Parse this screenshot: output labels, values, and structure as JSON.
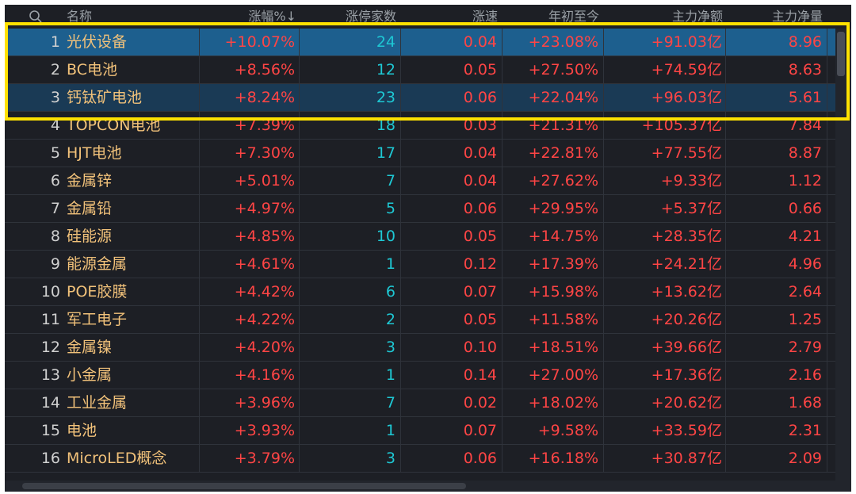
{
  "header": {
    "search_icon": "search-icon",
    "name": "名称",
    "change_pct": "涨幅%↓",
    "limit_up_count": "涨停家数",
    "speed": "涨速",
    "ytd": "年初至今",
    "net_inflow": "主力净额",
    "net_volume": "主力净量"
  },
  "rows": [
    {
      "idx": "1",
      "name": "光伏设备",
      "chg": "+10.07%",
      "cnt": "24",
      "spd": "0.04",
      "ytd": "+23.08%",
      "net": "+91.03亿",
      "vol": "8.96"
    },
    {
      "idx": "2",
      "name": "BC电池",
      "chg": "+8.56%",
      "cnt": "12",
      "spd": "0.05",
      "ytd": "+27.50%",
      "net": "+74.59亿",
      "vol": "8.63"
    },
    {
      "idx": "3",
      "name": "钙钛矿电池",
      "chg": "+8.24%",
      "cnt": "23",
      "spd": "0.06",
      "ytd": "+22.04%",
      "net": "+96.03亿",
      "vol": "5.61"
    },
    {
      "idx": "4",
      "name": "TOPCON电池",
      "chg": "+7.39%",
      "cnt": "18",
      "spd": "0.03",
      "ytd": "+21.31%",
      "net": "+105.37亿",
      "vol": "7.84"
    },
    {
      "idx": "5",
      "name": "HJT电池",
      "chg": "+7.30%",
      "cnt": "17",
      "spd": "0.04",
      "ytd": "+22.81%",
      "net": "+77.55亿",
      "vol": "8.87"
    },
    {
      "idx": "6",
      "name": "金属锌",
      "chg": "+5.01%",
      "cnt": "7",
      "spd": "0.04",
      "ytd": "+27.62%",
      "net": "+9.33亿",
      "vol": "1.12"
    },
    {
      "idx": "7",
      "name": "金属铅",
      "chg": "+4.97%",
      "cnt": "5",
      "spd": "0.06",
      "ytd": "+29.95%",
      "net": "+5.37亿",
      "vol": "0.66"
    },
    {
      "idx": "8",
      "name": "硅能源",
      "chg": "+4.85%",
      "cnt": "10",
      "spd": "0.05",
      "ytd": "+14.75%",
      "net": "+28.35亿",
      "vol": "4.21"
    },
    {
      "idx": "9",
      "name": "能源金属",
      "chg": "+4.61%",
      "cnt": "1",
      "spd": "0.12",
      "ytd": "+17.39%",
      "net": "+24.21亿",
      "vol": "4.96"
    },
    {
      "idx": "10",
      "name": "POE胶膜",
      "chg": "+4.42%",
      "cnt": "6",
      "spd": "0.07",
      "ytd": "+15.98%",
      "net": "+13.62亿",
      "vol": "2.64"
    },
    {
      "idx": "11",
      "name": "军工电子",
      "chg": "+4.22%",
      "cnt": "2",
      "spd": "0.05",
      "ytd": "+11.58%",
      "net": "+20.26亿",
      "vol": "1.25"
    },
    {
      "idx": "12",
      "name": "金属镍",
      "chg": "+4.20%",
      "cnt": "3",
      "spd": "0.10",
      "ytd": "+18.51%",
      "net": "+39.66亿",
      "vol": "2.79"
    },
    {
      "idx": "13",
      "name": "小金属",
      "chg": "+4.16%",
      "cnt": "1",
      "spd": "0.14",
      "ytd": "+27.00%",
      "net": "+17.36亿",
      "vol": "2.16"
    },
    {
      "idx": "14",
      "name": "工业金属",
      "chg": "+3.96%",
      "cnt": "7",
      "spd": "0.02",
      "ytd": "+18.02%",
      "net": "+20.62亿",
      "vol": "1.68"
    },
    {
      "idx": "15",
      "name": "电池",
      "chg": "+3.93%",
      "cnt": "1",
      "spd": "0.07",
      "ytd": "+9.58%",
      "net": "+33.59亿",
      "vol": "2.31"
    },
    {
      "idx": "16",
      "name": "MicroLED概念",
      "chg": "+3.79%",
      "cnt": "3",
      "spd": "0.06",
      "ytd": "+16.18%",
      "net": "+30.87亿",
      "vol": "2.09"
    }
  ],
  "colors": {
    "up": "#ff4545",
    "count": "#1ec8d4",
    "name": "#f2c27a",
    "highlight_box": "#ffe100",
    "selected_row": "#1d5f8e"
  }
}
